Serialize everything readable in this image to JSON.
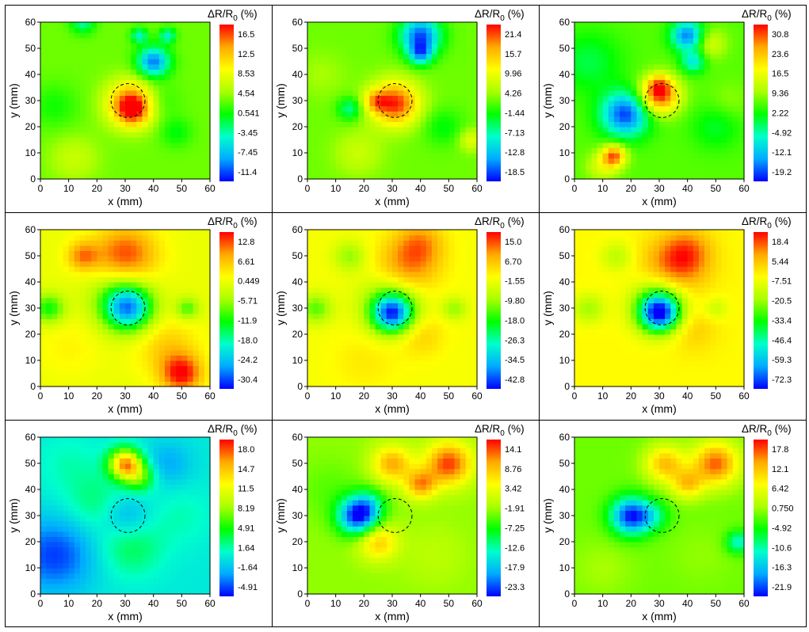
{
  "figure": {
    "colorbar_title_main": "ΔR/R",
    "colorbar_title_sub": "0",
    "colorbar_title_unit": " (%)",
    "xlabel": "x (mm)",
    "ylabel": "y (mm)",
    "colormap": [
      "#0000ff",
      "#00aaff",
      "#00ffcc",
      "#00ff00",
      "#aaff00",
      "#ffff00",
      "#ffaa00",
      "#ff0000"
    ],
    "defect_circle": {
      "cx": 31,
      "cy": 30,
      "r": 6
    }
  },
  "chart_data": [
    {
      "type": "heatmap",
      "xlim": [
        0,
        60
      ],
      "ylim": [
        0,
        60
      ],
      "xticks": [
        0,
        10,
        20,
        30,
        40,
        50,
        60
      ],
      "yticks": [
        0,
        10,
        20,
        30,
        40,
        50,
        60
      ],
      "colorbar_ticks": [
        "16.5",
        "12.5",
        "8.53",
        "4.54",
        "0.541",
        "-3.45",
        "-7.45",
        "-11.4"
      ],
      "base": 0.52,
      "blobs": [
        [
          32,
          29,
          6,
          0.42
        ],
        [
          40,
          45,
          4,
          -0.42
        ],
        [
          35,
          55,
          2,
          -0.25
        ],
        [
          45,
          55,
          2,
          -0.25
        ],
        [
          15,
          60,
          3,
          -0.2
        ],
        [
          33,
          26,
          4,
          0.2
        ],
        [
          12,
          8,
          6,
          0.1
        ],
        [
          48,
          18,
          4,
          -0.1
        ],
        [
          5,
          28,
          6,
          -0.08
        ],
        [
          42,
          30,
          5,
          -0.08
        ]
      ]
    },
    {
      "type": "heatmap",
      "xlim": [
        0,
        60
      ],
      "ylim": [
        0,
        60
      ],
      "xticks": [
        0,
        10,
        20,
        30,
        40,
        50,
        60
      ],
      "yticks": [
        0,
        10,
        20,
        30,
        40,
        50,
        60
      ],
      "colorbar_ticks": [
        "21.4",
        "15.7",
        "9.96",
        "4.26",
        "-1.44",
        "-7.13",
        "-12.8",
        "-18.5"
      ],
      "base": 0.52,
      "blobs": [
        [
          31,
          29,
          6,
          0.45
        ],
        [
          40,
          55,
          5,
          -0.45
        ],
        [
          40,
          48,
          3,
          -0.3
        ],
        [
          15,
          27,
          3,
          -0.2
        ],
        [
          24,
          30,
          3,
          0.2
        ],
        [
          18,
          10,
          6,
          0.1
        ],
        [
          48,
          20,
          5,
          -0.1
        ],
        [
          58,
          15,
          3,
          0.15
        ],
        [
          5,
          40,
          6,
          0.05
        ]
      ]
    },
    {
      "type": "heatmap",
      "xlim": [
        0,
        60
      ],
      "ylim": [
        0,
        60
      ],
      "xticks": [
        0,
        10,
        20,
        30,
        40,
        50,
        60
      ],
      "yticks": [
        0,
        10,
        20,
        30,
        40,
        50,
        60
      ],
      "colorbar_ticks": [
        "30.8",
        "23.6",
        "16.5",
        "9.36",
        "2.22",
        "-4.92",
        "-12.1",
        "-19.2"
      ],
      "base": 0.5,
      "blobs": [
        [
          30,
          32,
          5,
          0.45
        ],
        [
          18,
          25,
          6,
          -0.45
        ],
        [
          40,
          55,
          4,
          -0.4
        ],
        [
          42,
          45,
          3,
          -0.25
        ],
        [
          14,
          9,
          3,
          0.4
        ],
        [
          10,
          5,
          4,
          0.15
        ],
        [
          30,
          36,
          3,
          0.2
        ],
        [
          48,
          52,
          4,
          0.15
        ],
        [
          5,
          45,
          8,
          -0.12
        ],
        [
          50,
          20,
          6,
          -0.1
        ],
        [
          55,
          30,
          5,
          0.05
        ]
      ]
    },
    {
      "type": "heatmap",
      "xlim": [
        0,
        60
      ],
      "ylim": [
        0,
        60
      ],
      "xticks": [
        0,
        10,
        20,
        30,
        40,
        50,
        60
      ],
      "yticks": [
        0,
        10,
        20,
        30,
        40,
        50,
        60
      ],
      "colorbar_ticks": [
        "12.8",
        "6.61",
        "0.449",
        "-5.71",
        "-11.9",
        "-18.0",
        "-24.2",
        "-30.4"
      ],
      "base": 0.68,
      "blobs": [
        [
          31,
          30,
          6,
          -0.5
        ],
        [
          28,
          36,
          8,
          -0.15
        ],
        [
          30,
          50,
          8,
          0.28
        ],
        [
          15,
          50,
          4,
          0.2
        ],
        [
          50,
          5,
          5,
          0.3
        ],
        [
          3,
          30,
          4,
          -0.25
        ],
        [
          52,
          30,
          3,
          -0.2
        ],
        [
          45,
          15,
          8,
          0.12
        ],
        [
          10,
          15,
          8,
          0.05
        ]
      ]
    },
    {
      "type": "heatmap",
      "xlim": [
        0,
        60
      ],
      "ylim": [
        0,
        60
      ],
      "xticks": [
        0,
        10,
        20,
        30,
        40,
        50,
        60
      ],
      "yticks": [
        0,
        10,
        20,
        30,
        40,
        50,
        60
      ],
      "colorbar_ticks": [
        "15.0",
        "6.70",
        "-1.55",
        "-9.80",
        "-18.0",
        "-26.3",
        "-34.5",
        "-42.8"
      ],
      "base": 0.7,
      "blobs": [
        [
          30,
          28,
          5,
          -0.55
        ],
        [
          30,
          33,
          8,
          -0.2
        ],
        [
          35,
          45,
          8,
          0.2
        ],
        [
          40,
          55,
          6,
          0.15
        ],
        [
          15,
          50,
          4,
          -0.15
        ],
        [
          3,
          30,
          4,
          -0.2
        ],
        [
          52,
          30,
          3,
          -0.15
        ],
        [
          40,
          20,
          6,
          0.1
        ],
        [
          20,
          10,
          8,
          0.05
        ]
      ]
    },
    {
      "type": "heatmap",
      "xlim": [
        0,
        60
      ],
      "ylim": [
        0,
        60
      ],
      "xticks": [
        0,
        10,
        20,
        30,
        40,
        50,
        60
      ],
      "yticks": [
        0,
        10,
        20,
        30,
        40,
        50,
        60
      ],
      "colorbar_ticks": [
        "18.4",
        "5.44",
        "-7.51",
        "-20.5",
        "-33.4",
        "-46.4",
        "-59.3",
        "-72.3"
      ],
      "base": 0.72,
      "blobs": [
        [
          30,
          28,
          5,
          -0.6
        ],
        [
          30,
          33,
          7,
          -0.25
        ],
        [
          35,
          45,
          8,
          0.2
        ],
        [
          40,
          52,
          6,
          0.15
        ],
        [
          15,
          50,
          4,
          -0.12
        ],
        [
          5,
          30,
          4,
          -0.15
        ],
        [
          50,
          30,
          3,
          -0.1
        ],
        [
          42,
          22,
          6,
          0.08
        ]
      ]
    },
    {
      "type": "heatmap",
      "xlim": [
        0,
        60
      ],
      "ylim": [
        0,
        60
      ],
      "xticks": [
        0,
        10,
        20,
        30,
        40,
        50,
        60
      ],
      "yticks": [
        0,
        10,
        20,
        30,
        40,
        50,
        60
      ],
      "colorbar_ticks": [
        "18.0",
        "14.7",
        "11.5",
        "8.19",
        "4.91",
        "1.64",
        "-1.64",
        "-4.91"
      ],
      "base": 0.25,
      "blobs": [
        [
          30,
          50,
          4,
          0.6
        ],
        [
          35,
          45,
          4,
          0.25
        ],
        [
          30,
          30,
          6,
          -0.12
        ],
        [
          5,
          15,
          10,
          -0.2
        ],
        [
          45,
          50,
          6,
          -0.1
        ],
        [
          20,
          35,
          8,
          0.1
        ],
        [
          32,
          18,
          8,
          0.12
        ],
        [
          50,
          30,
          8,
          0.05
        ],
        [
          10,
          50,
          8,
          0.05
        ]
      ]
    },
    {
      "type": "heatmap",
      "xlim": [
        0,
        60
      ],
      "ylim": [
        0,
        60
      ],
      "xticks": [
        0,
        10,
        20,
        30,
        40,
        50,
        60
      ],
      "yticks": [
        0,
        10,
        20,
        30,
        40,
        50,
        60
      ],
      "colorbar_ticks": [
        "14.1",
        "8.76",
        "3.42",
        "-1.91",
        "-7.25",
        "-12.6",
        "-17.9",
        "-23.3"
      ],
      "base": 0.55,
      "blobs": [
        [
          18,
          30,
          5,
          -0.55
        ],
        [
          22,
          35,
          4,
          -0.15
        ],
        [
          30,
          50,
          5,
          0.3
        ],
        [
          50,
          50,
          6,
          0.4
        ],
        [
          40,
          42,
          4,
          0.3
        ],
        [
          25,
          20,
          5,
          0.25
        ],
        [
          8,
          40,
          8,
          -0.05
        ],
        [
          45,
          15,
          8,
          0.05
        ]
      ]
    },
    {
      "type": "heatmap",
      "xlim": [
        0,
        60
      ],
      "ylim": [
        0,
        60
      ],
      "xticks": [
        0,
        10,
        20,
        30,
        40,
        50,
        60
      ],
      "yticks": [
        0,
        10,
        20,
        30,
        40,
        50,
        60
      ],
      "colorbar_ticks": [
        "17.8",
        "12.1",
        "6.42",
        "0.750",
        "-4.92",
        "-10.6",
        "-16.3",
        "-21.9"
      ],
      "base": 0.52,
      "blobs": [
        [
          20,
          30,
          5,
          -0.5
        ],
        [
          28,
          30,
          4,
          -0.15
        ],
        [
          32,
          50,
          5,
          0.3
        ],
        [
          50,
          50,
          6,
          0.4
        ],
        [
          40,
          42,
          4,
          0.25
        ],
        [
          58,
          20,
          3,
          -0.25
        ],
        [
          10,
          10,
          8,
          0.05
        ],
        [
          45,
          15,
          8,
          0.03
        ]
      ]
    }
  ]
}
